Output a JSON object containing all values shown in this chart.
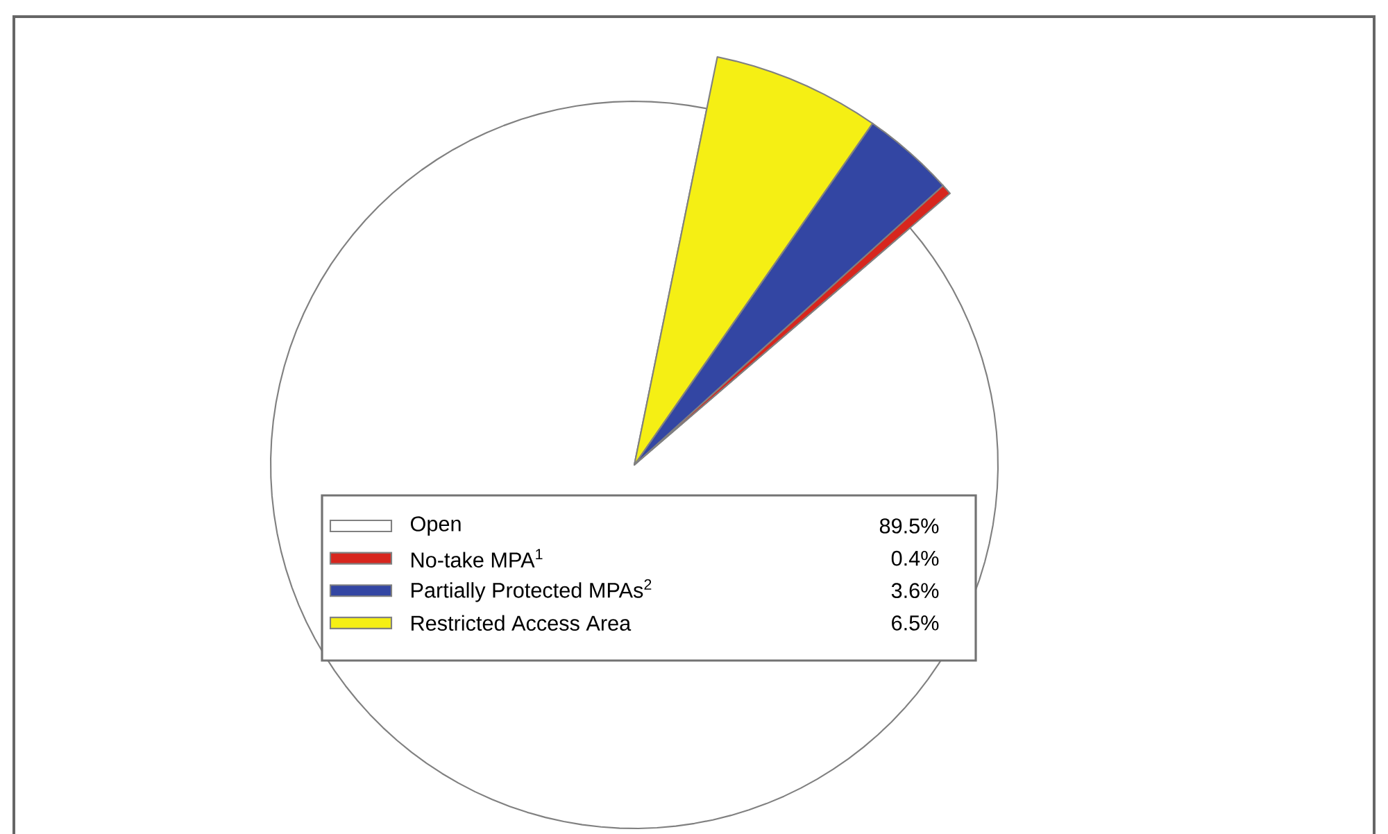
{
  "chart_data": {
    "type": "pie",
    "categories": [
      "Open",
      "No-take MPA$^{1}$",
      "Partially Protected MPAs$^{2}$",
      "Restricted Access Area"
    ],
    "values": [
      89.5,
      0.4,
      3.6,
      6.5
    ],
    "value_labels": [
      "89.5%",
      "0.4%",
      "3.6%",
      "6.5%"
    ],
    "colors": [
      "#ffffff",
      "#d7261e",
      "#3346a3",
      "#f5ef14"
    ],
    "legend": "bottom"
  }
}
